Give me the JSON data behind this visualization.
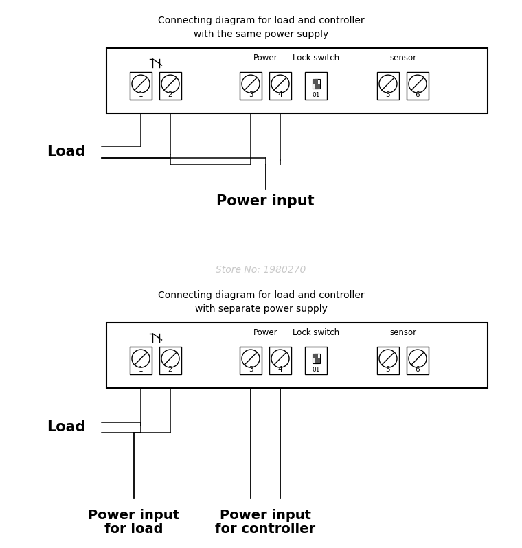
{
  "bg_color": "#ffffff",
  "line_color": "#000000",
  "title1_line1": "Connecting diagram for load and controller",
  "title1_line2": "with the same power supply",
  "title2_line1": "Connecting diagram for load and controller",
  "title2_line2": "with separate power supply",
  "watermark": "Store No: 1980270",
  "label_load": "Load",
  "label_power_input": "Power input",
  "label_power": "Power",
  "label_lock_switch": "Lock switch",
  "label_sensor": "sensor",
  "terminal_numbers": [
    "1",
    "2",
    "3",
    "4",
    "5",
    "6"
  ]
}
